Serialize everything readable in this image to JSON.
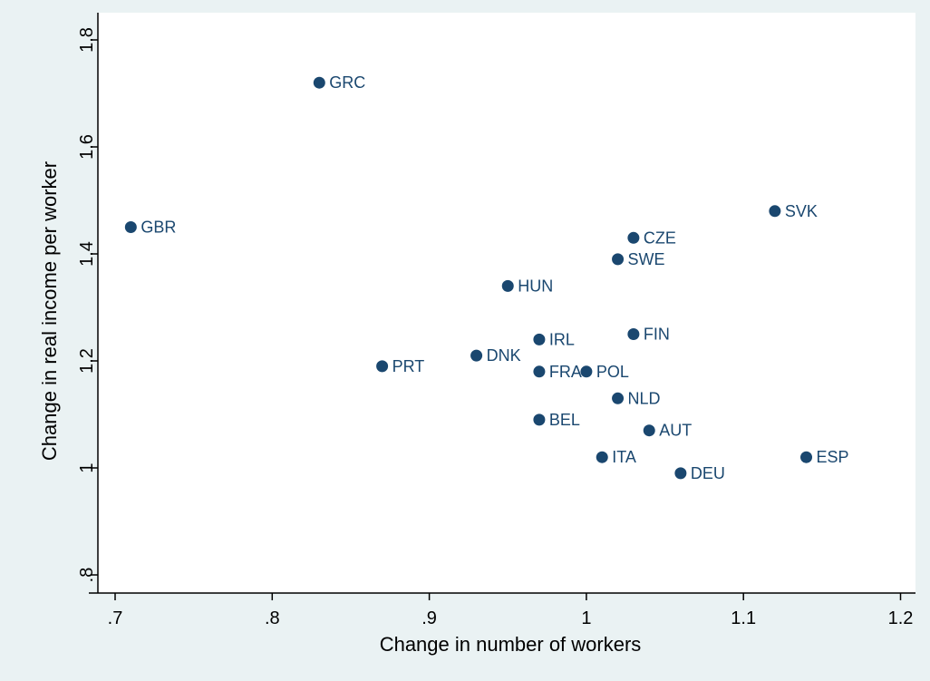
{
  "chart_data": {
    "type": "scatter",
    "title": "",
    "xlabel": "Change in number of workers",
    "ylabel": "Change in real income per worker",
    "xlim": [
      0.7,
      1.2
    ],
    "ylim": [
      0.8,
      1.8
    ],
    "xticks": [
      {
        "value": 0.7,
        "label": ".7"
      },
      {
        "value": 0.8,
        "label": ".8"
      },
      {
        "value": 0.9,
        "label": ".9"
      },
      {
        "value": 1.0,
        "label": "1"
      },
      {
        "value": 1.1,
        "label": "1.1"
      },
      {
        "value": 1.2,
        "label": "1.2"
      }
    ],
    "yticks": [
      {
        "value": 0.8,
        "label": ".8"
      },
      {
        "value": 1.0,
        "label": "1"
      },
      {
        "value": 1.2,
        "label": "1.2"
      },
      {
        "value": 1.4,
        "label": "1.4"
      },
      {
        "value": 1.6,
        "label": "1.6"
      },
      {
        "value": 1.8,
        "label": "1.8"
      }
    ],
    "grid": false,
    "legend": "none",
    "colors": {
      "marker": "#1a476f",
      "label": "#1a476f",
      "plot_bg": "#ffffff",
      "outer_bg": "#eaf2f3",
      "axis": "#000000"
    },
    "points": [
      {
        "label": "GRC",
        "x": 0.83,
        "y": 1.72
      },
      {
        "label": "GBR",
        "x": 0.71,
        "y": 1.45
      },
      {
        "label": "SVK",
        "x": 1.12,
        "y": 1.48
      },
      {
        "label": "CZE",
        "x": 1.03,
        "y": 1.43
      },
      {
        "label": "SWE",
        "x": 1.02,
        "y": 1.39
      },
      {
        "label": "HUN",
        "x": 0.95,
        "y": 1.34
      },
      {
        "label": "FIN",
        "x": 1.03,
        "y": 1.25
      },
      {
        "label": "IRL",
        "x": 0.97,
        "y": 1.24
      },
      {
        "label": "DNK",
        "x": 0.93,
        "y": 1.21
      },
      {
        "label": "PRT",
        "x": 0.87,
        "y": 1.19
      },
      {
        "label": "FRA",
        "x": 0.97,
        "y": 1.18
      },
      {
        "label": "POL",
        "x": 1.0,
        "y": 1.18
      },
      {
        "label": "NLD",
        "x": 1.02,
        "y": 1.13
      },
      {
        "label": "BEL",
        "x": 0.97,
        "y": 1.09
      },
      {
        "label": "AUT",
        "x": 1.04,
        "y": 1.07
      },
      {
        "label": "ITA",
        "x": 1.01,
        "y": 1.02
      },
      {
        "label": "ESP",
        "x": 1.14,
        "y": 1.02
      },
      {
        "label": "DEU",
        "x": 1.06,
        "y": 0.99
      }
    ]
  }
}
